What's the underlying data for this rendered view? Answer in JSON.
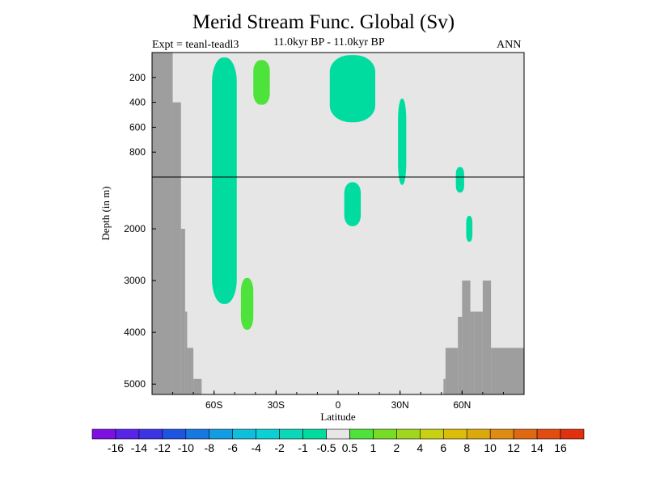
{
  "chart_data": {
    "type": "heatmap",
    "title": "Merid Stream Func. Global (Sv)",
    "subtitle_left": "Expt = teanl-teadl3",
    "subtitle_center": "11.0kyr BP - 11.0kyr BP",
    "subtitle_right": "ANN",
    "xlabel": "Latitude",
    "ylabel": "Depth (in m)",
    "x_ticks": [
      {
        "value": -60,
        "label": "60S"
      },
      {
        "value": -30,
        "label": "30S"
      },
      {
        "value": 0,
        "label": "0"
      },
      {
        "value": 30,
        "label": "30N"
      },
      {
        "value": 60,
        "label": "60N"
      }
    ],
    "y_ticks_upper": [
      {
        "value": 200,
        "label": "200"
      },
      {
        "value": 400,
        "label": "400"
      },
      {
        "value": 600,
        "label": "600"
      },
      {
        "value": 800,
        "label": "800"
      }
    ],
    "y_ticks_lower": [
      {
        "value": 2000,
        "label": "2000"
      },
      {
        "value": 3000,
        "label": "3000"
      },
      {
        "value": 4000,
        "label": "4000"
      },
      {
        "value": 5000,
        "label": "5000"
      }
    ],
    "xlim": [
      -90,
      90
    ],
    "ylim_upper": [
      0,
      1000
    ],
    "ylim_lower": [
      1000,
      5200
    ],
    "background_color": "#e6e6e6",
    "land_color": "#9e9e9e",
    "colorbar": {
      "boundaries": [
        "-16",
        "-14",
        "-12",
        "-10",
        "-8",
        "-6",
        "-4",
        "-2",
        "-1",
        "-0.5",
        "0.5",
        "1",
        "2",
        "4",
        "6",
        "8",
        "10",
        "12",
        "14",
        "16"
      ],
      "colors": [
        "#7e10e4",
        "#5724e8",
        "#3c34e4",
        "#1d55e2",
        "#1779e0",
        "#129de2",
        "#0ebfdc",
        "#0bd0d4",
        "#0ad8b8",
        "#00dca0",
        "#e6e6e6",
        "#4ee33a",
        "#77dc26",
        "#a0d61c",
        "#c8d012",
        "#dcbd0a",
        "#dca90c",
        "#de8d12",
        "#e06812",
        "#e24c10",
        "#e03010"
      ]
    },
    "land_regions": [
      {
        "name": "antarctic",
        "cells": [
          [
            -90,
            -80,
            0,
            5200
          ],
          [
            -80,
            -76,
            400,
            5200
          ],
          [
            -76,
            -74,
            2000,
            5200
          ],
          [
            -74,
            -73,
            3600,
            5200
          ],
          [
            -73,
            -70,
            4300,
            5200
          ],
          [
            -70,
            -66,
            4900,
            5200
          ]
        ]
      },
      {
        "name": "arctic",
        "cells": [
          [
            51,
            52,
            4900,
            5200
          ],
          [
            52,
            58,
            4300,
            5200
          ],
          [
            58,
            60,
            3700,
            5200
          ],
          [
            60,
            64,
            3000,
            5200
          ],
          [
            64,
            66,
            3600,
            5200
          ],
          [
            66,
            70,
            3600,
            5200
          ],
          [
            70,
            74,
            3000,
            5200
          ],
          [
            74,
            90,
            4300,
            5200
          ]
        ]
      }
    ],
    "anomaly_regions": [
      {
        "value_bin": "-1 to -0.5",
        "lat_range": [
          -61,
          -49
        ],
        "depth_range": [
          40,
          3450
        ]
      },
      {
        "value_bin": "0.5 to 1",
        "lat_range": [
          -41,
          -33
        ],
        "depth_range": [
          60,
          420
        ]
      },
      {
        "value_bin": "0.5 to 1",
        "lat_range": [
          -47,
          -41
        ],
        "depth_range": [
          2950,
          3950
        ]
      },
      {
        "value_bin": "-1 to -0.5",
        "lat_range": [
          -4,
          18
        ],
        "depth_range": [
          20,
          560
        ]
      },
      {
        "value_bin": "-1 to -0.5",
        "lat_range": [
          3,
          11
        ],
        "depth_range": [
          1100,
          1950
        ]
      },
      {
        "value_bin": "-1 to -0.5",
        "lat_range": [
          29,
          33
        ],
        "depth_range": [
          370,
          1150
        ]
      },
      {
        "value_bin": "-1 to -0.5",
        "lat_range": [
          57,
          61
        ],
        "depth_range": [
          920,
          1300
        ]
      },
      {
        "value_bin": "-1 to -0.5",
        "lat_range": [
          62,
          65
        ],
        "depth_range": [
          1750,
          2250
        ]
      }
    ]
  }
}
